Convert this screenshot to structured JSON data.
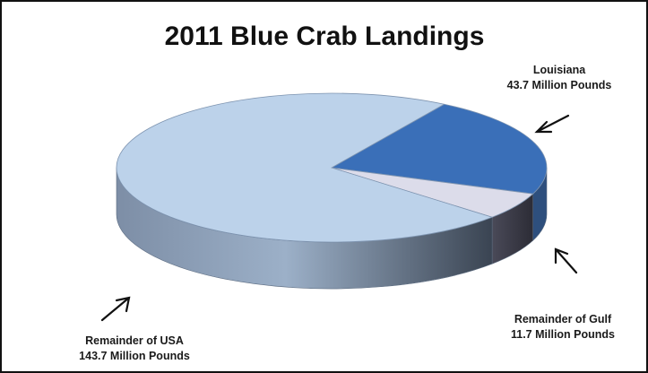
{
  "chart_data": {
    "type": "pie",
    "title": "2011 Blue Crab Landings",
    "slices": [
      {
        "name": "Louisiana",
        "value": 43.7,
        "value_label": "43.7 Million Pounds",
        "color": "#3a6fb8"
      },
      {
        "name": "Remainder of Gulf",
        "value": 11.7,
        "value_label": "11.7 Million Pounds",
        "color": "#dcdcea"
      },
      {
        "name": "Remainder of USA",
        "value": 143.7,
        "value_label": "143.7 Million Pounds",
        "color": "#bcd2ea"
      }
    ],
    "style": "3d",
    "legend": "none"
  }
}
